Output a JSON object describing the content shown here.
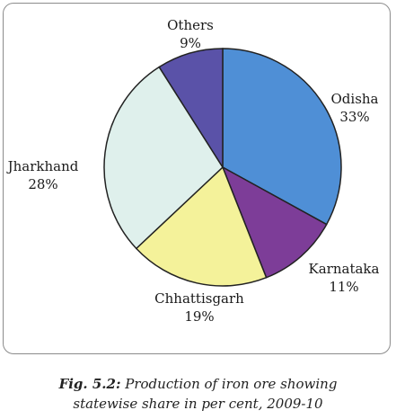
{
  "chart_data": {
    "type": "pie",
    "slices": [
      {
        "label": "Odisha",
        "value": 33,
        "value_label": "33%",
        "color": "#4f8fd6"
      },
      {
        "label": "Karnataka",
        "value": 11,
        "value_label": "11%",
        "color": "#7d3d98"
      },
      {
        "label": "Chhattisgarh",
        "value": 19,
        "value_label": "19%",
        "color": "#f4f29a"
      },
      {
        "label": "Jharkhand",
        "value": 28,
        "value_label": "28%",
        "color": "#dff0ec"
      },
      {
        "label": "Others",
        "value": 9,
        "value_label": "9%",
        "color": "#5a52a8"
      }
    ]
  },
  "caption": {
    "fig_label": "Fig. 5.2:",
    "line1": "Production of iron ore showing",
    "line2": "statewise share in per cent, 2009-10"
  }
}
